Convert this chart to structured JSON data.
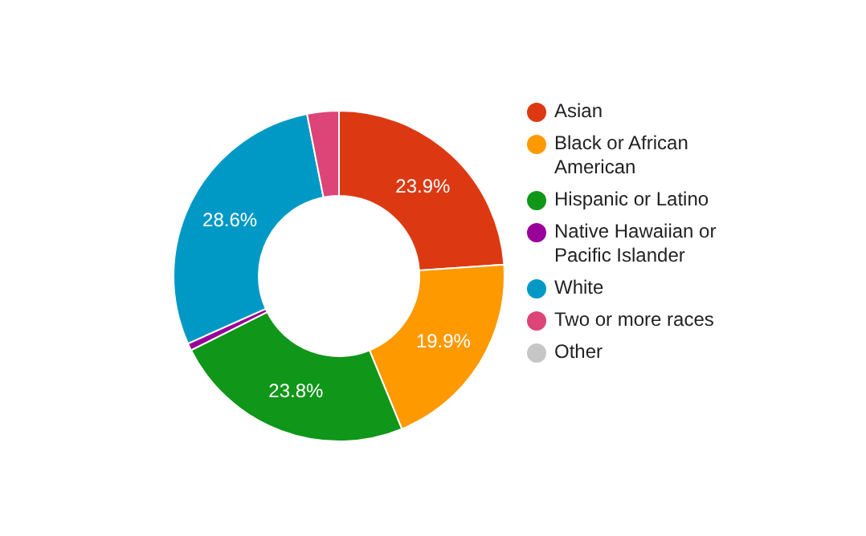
{
  "chart_data": {
    "type": "donut",
    "categories": [
      "Asian",
      "Black or African American",
      "Hispanic or Latino",
      "Native Hawaiian or Pacific Islander",
      "White",
      "Two or more races",
      "Other"
    ],
    "values": [
      23.9,
      19.9,
      23.8,
      0.7,
      28.6,
      3.1,
      0
    ],
    "colors": [
      "#dc3912",
      "#ff9900",
      "#109618",
      "#990099",
      "#0099c6",
      "#dd4477",
      "#c6c6c6"
    ],
    "value_labels": [
      "23.9%",
      "19.9%",
      "23.8%",
      null,
      "28.6%",
      null,
      null
    ],
    "legend": "right"
  }
}
